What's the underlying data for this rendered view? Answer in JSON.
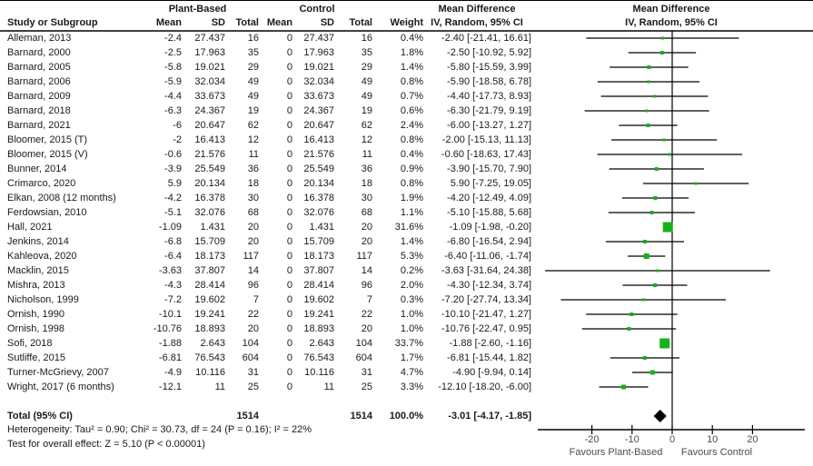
{
  "header": {
    "col_study": "Study or Subgroup",
    "group1": "Plant-Based",
    "group2": "Control",
    "col_mean1": "Mean",
    "col_sd1": "SD",
    "col_total1": "Total",
    "col_mean2": "Mean",
    "col_sd2": "SD",
    "col_total2": "Total",
    "col_weight": "Weight",
    "md_title": "Mean Difference",
    "md_subtitle": "IV, Random, 95% CI",
    "plot_title": "Mean Difference",
    "plot_subtitle": "IV, Random, 95% CI"
  },
  "studies": [
    {
      "name": "Alleman, 2013",
      "mean": "-2.4",
      "sd": "27.437",
      "total": "16",
      "c_mean": "0",
      "c_sd": "27.437",
      "c_total": "16",
      "weight": "0.4%",
      "ci": "-2.40 [-21.41, 16.61]",
      "est": -2.4,
      "lo": -21.41,
      "hi": 16.61,
      "w": 0.4
    },
    {
      "name": "Barnard, 2000",
      "mean": "-2.5",
      "sd": "17.963",
      "total": "35",
      "c_mean": "0",
      "c_sd": "17.963",
      "c_total": "35",
      "weight": "1.8%",
      "ci": "-2.50 [-10.92, 5.92]",
      "est": -2.5,
      "lo": -10.92,
      "hi": 5.92,
      "w": 1.8
    },
    {
      "name": "Barnard, 2005",
      "mean": "-5.8",
      "sd": "19.021",
      "total": "29",
      "c_mean": "0",
      "c_sd": "19.021",
      "c_total": "29",
      "weight": "1.4%",
      "ci": "-5.80 [-15.59, 3.99]",
      "est": -5.8,
      "lo": -15.59,
      "hi": 3.99,
      "w": 1.4
    },
    {
      "name": "Barnard, 2006",
      "mean": "-5.9",
      "sd": "32.034",
      "total": "49",
      "c_mean": "0",
      "c_sd": "32.034",
      "c_total": "49",
      "weight": "0.8%",
      "ci": "-5.90 [-18.58, 6.78]",
      "est": -5.9,
      "lo": -18.58,
      "hi": 6.78,
      "w": 0.8
    },
    {
      "name": "Barnard, 2009",
      "mean": "-4.4",
      "sd": "33.673",
      "total": "49",
      "c_mean": "0",
      "c_sd": "33.673",
      "c_total": "49",
      "weight": "0.7%",
      "ci": "-4.40 [-17.73, 8.93]",
      "est": -4.4,
      "lo": -17.73,
      "hi": 8.93,
      "w": 0.7
    },
    {
      "name": "Barnard, 2018",
      "mean": "-6.3",
      "sd": "24.367",
      "total": "19",
      "c_mean": "0",
      "c_sd": "24.367",
      "c_total": "19",
      "weight": "0.6%",
      "ci": "-6.30 [-21.79, 9.19]",
      "est": -6.3,
      "lo": -21.79,
      "hi": 9.19,
      "w": 0.6
    },
    {
      "name": "Barnard, 2021",
      "mean": "-6",
      "sd": "20.647",
      "total": "62",
      "c_mean": "0",
      "c_sd": "20.647",
      "c_total": "62",
      "weight": "2.4%",
      "ci": "-6.00 [-13.27, 1.27]",
      "est": -6.0,
      "lo": -13.27,
      "hi": 1.27,
      "w": 2.4
    },
    {
      "name": "Bloomer, 2015 (T)",
      "mean": "-2",
      "sd": "16.413",
      "total": "12",
      "c_mean": "0",
      "c_sd": "16.413",
      "c_total": "12",
      "weight": "0.8%",
      "ci": "-2.00 [-15.13, 11.13]",
      "est": -2.0,
      "lo": -15.13,
      "hi": 11.13,
      "w": 0.8
    },
    {
      "name": "Bloomer, 2015 (V)",
      "mean": "-0.6",
      "sd": "21.576",
      "total": "11",
      "c_mean": "0",
      "c_sd": "21.576",
      "c_total": "11",
      "weight": "0.4%",
      "ci": "-0.60 [-18.63, 17.43]",
      "est": -0.6,
      "lo": -18.63,
      "hi": 17.43,
      "w": 0.4
    },
    {
      "name": "Bunner, 2014",
      "mean": "-3.9",
      "sd": "25.549",
      "total": "36",
      "c_mean": "0",
      "c_sd": "25.549",
      "c_total": "36",
      "weight": "0.9%",
      "ci": "-3.90 [-15.70, 7.90]",
      "est": -3.9,
      "lo": -15.7,
      "hi": 7.9,
      "w": 0.9
    },
    {
      "name": "Crimarco, 2020",
      "mean": "5.9",
      "sd": "20.134",
      "total": "18",
      "c_mean": "0",
      "c_sd": "20.134",
      "c_total": "18",
      "weight": "0.8%",
      "ci": "5.90 [-7.25, 19.05]",
      "est": 5.9,
      "lo": -7.25,
      "hi": 19.05,
      "w": 0.8
    },
    {
      "name": "Elkan, 2008 (12 months)",
      "mean": "-4.2",
      "sd": "16.378",
      "total": "30",
      "c_mean": "0",
      "c_sd": "16.378",
      "c_total": "30",
      "weight": "1.9%",
      "ci": "-4.20 [-12.49, 4.09]",
      "est": -4.2,
      "lo": -12.49,
      "hi": 4.09,
      "w": 1.9
    },
    {
      "name": "Ferdowsian, 2010",
      "mean": "-5.1",
      "sd": "32.076",
      "total": "68",
      "c_mean": "0",
      "c_sd": "32.076",
      "c_total": "68",
      "weight": "1.1%",
      "ci": "-5.10 [-15.88, 5.68]",
      "est": -5.1,
      "lo": -15.88,
      "hi": 5.68,
      "w": 1.1
    },
    {
      "name": "Hall, 2021",
      "mean": "-1.09",
      "sd": "1.431",
      "total": "20",
      "c_mean": "0",
      "c_sd": "1.431",
      "c_total": "20",
      "weight": "31.6%",
      "ci": "-1.09 [-1.98, -0.20]",
      "est": -1.09,
      "lo": -1.98,
      "hi": -0.2,
      "w": 31.6
    },
    {
      "name": "Jenkins, 2014",
      "mean": "-6.8",
      "sd": "15.709",
      "total": "20",
      "c_mean": "0",
      "c_sd": "15.709",
      "c_total": "20",
      "weight": "1.4%",
      "ci": "-6.80 [-16.54, 2.94]",
      "est": -6.8,
      "lo": -16.54,
      "hi": 2.94,
      "w": 1.4
    },
    {
      "name": "Kahleova, 2020",
      "mean": "-6.4",
      "sd": "18.173",
      "total": "117",
      "c_mean": "0",
      "c_sd": "18.173",
      "c_total": "117",
      "weight": "5.3%",
      "ci": "-6.40 [-11.06, -1.74]",
      "est": -6.4,
      "lo": -11.06,
      "hi": -1.74,
      "w": 5.3
    },
    {
      "name": "Macklin, 2015",
      "mean": "-3.63",
      "sd": "37.807",
      "total": "14",
      "c_mean": "0",
      "c_sd": "37.807",
      "c_total": "14",
      "weight": "0.2%",
      "ci": "-3.63 [-31.64, 24.38]",
      "est": -3.63,
      "lo": -31.64,
      "hi": 24.38,
      "w": 0.2
    },
    {
      "name": "Mishra, 2013",
      "mean": "-4.3",
      "sd": "28.414",
      "total": "96",
      "c_mean": "0",
      "c_sd": "28.414",
      "c_total": "96",
      "weight": "2.0%",
      "ci": "-4.30 [-12.34, 3.74]",
      "est": -4.3,
      "lo": -12.34,
      "hi": 3.74,
      "w": 2.0
    },
    {
      "name": "Nicholson, 1999",
      "mean": "-7.2",
      "sd": "19.602",
      "total": "7",
      "c_mean": "0",
      "c_sd": "19.602",
      "c_total": "7",
      "weight": "0.3%",
      "ci": "-7.20 [-27.74, 13.34]",
      "est": -7.2,
      "lo": -27.74,
      "hi": 13.34,
      "w": 0.3
    },
    {
      "name": "Ornish, 1990",
      "mean": "-10.1",
      "sd": "19.241",
      "total": "22",
      "c_mean": "0",
      "c_sd": "19.241",
      "c_total": "22",
      "weight": "1.0%",
      "ci": "-10.10 [-21.47, 1.27]",
      "est": -10.1,
      "lo": -21.47,
      "hi": 1.27,
      "w": 1.0
    },
    {
      "name": "Ornish, 1998",
      "mean": "-10.76",
      "sd": "18.893",
      "total": "20",
      "c_mean": "0",
      "c_sd": "18.893",
      "c_total": "20",
      "weight": "1.0%",
      "ci": "-10.76 [-22.47, 0.95]",
      "est": -10.76,
      "lo": -22.47,
      "hi": 0.95,
      "w": 1.0
    },
    {
      "name": "Sofi, 2018",
      "mean": "-1.88",
      "sd": "2.643",
      "total": "104",
      "c_mean": "0",
      "c_sd": "2.643",
      "c_total": "104",
      "weight": "33.7%",
      "ci": "-1.88 [-2.60, -1.16]",
      "est": -1.88,
      "lo": -2.6,
      "hi": -1.16,
      "w": 33.7
    },
    {
      "name": "Sutliffe, 2015",
      "mean": "-6.81",
      "sd": "76.543",
      "total": "604",
      "c_mean": "0",
      "c_sd": "76.543",
      "c_total": "604",
      "weight": "1.7%",
      "ci": "-6.81 [-15.44, 1.82]",
      "est": -6.81,
      "lo": -15.44,
      "hi": 1.82,
      "w": 1.7
    },
    {
      "name": "Turner-McGrievy, 2007",
      "mean": "-4.9",
      "sd": "10.116",
      "total": "31",
      "c_mean": "0",
      "c_sd": "10.116",
      "c_total": "31",
      "weight": "4.7%",
      "ci": "-4.90 [-9.94, 0.14]",
      "est": -4.9,
      "lo": -9.94,
      "hi": 0.14,
      "w": 4.7
    },
    {
      "name": "Wright, 2017 (6 months)",
      "mean": "-12.1",
      "sd": "11",
      "total": "25",
      "c_mean": "0",
      "c_sd": "11",
      "c_total": "25",
      "weight": "3.3%",
      "ci": "-12.10 [-18.20, -6.00]",
      "est": -12.1,
      "lo": -18.2,
      "hi": -6.0,
      "w": 3.3
    }
  ],
  "total_row": {
    "label": "Total (95% CI)",
    "total": "1514",
    "c_total": "1514",
    "weight": "100.0%",
    "ci": "-3.01 [-4.17, -1.85]",
    "est": -3.01,
    "lo": -4.17,
    "hi": -1.85
  },
  "footer": {
    "heterogeneity": "Heterogeneity: Tau² = 0.90; Chi² = 30.73, df = 24 (P = 0.16); I² = 22%",
    "overall_effect": "Test for overall effect: Z = 5.10 (P < 0.00001)"
  },
  "plot": {
    "favours_left": "Favours Plant-Based",
    "favours_right": "Favours Control",
    "marker_color": "#17b217",
    "diamond_color": "#000000",
    "line_color": "#000000"
  },
  "chart_data": {
    "type": "scatter",
    "subtype": "forest-plot",
    "title": "Mean Difference",
    "effect_measure": "IV, Random, 95% CI",
    "x_ticks": [
      -20,
      -10,
      0,
      10,
      20
    ],
    "xlim": [
      -33.5,
      33
    ],
    "zero_line": 0,
    "xlabel_left": "Favours Plant-Based",
    "xlabel_right": "Favours Control",
    "study_names": [
      "Alleman, 2013",
      "Barnard, 2000",
      "Barnard, 2005",
      "Barnard, 2006",
      "Barnard, 2009",
      "Barnard, 2018",
      "Barnard, 2021",
      "Bloomer, 2015 (T)",
      "Bloomer, 2015 (V)",
      "Bunner, 2014",
      "Crimarco, 2020",
      "Elkan, 2008 (12 months)",
      "Ferdowsian, 2010",
      "Hall, 2021",
      "Jenkins, 2014",
      "Kahleova, 2020",
      "Macklin, 2015",
      "Mishra, 2013",
      "Nicholson, 1999",
      "Ornish, 1990",
      "Ornish, 1998",
      "Sofi, 2018",
      "Sutliffe, 2015",
      "Turner-McGrievy, 2007",
      "Wright, 2017 (6 months)"
    ],
    "estimates": [
      -2.4,
      -2.5,
      -5.8,
      -5.9,
      -4.4,
      -6.3,
      -6.0,
      -2.0,
      -0.6,
      -3.9,
      5.9,
      -4.2,
      -5.1,
      -1.09,
      -6.8,
      -6.4,
      -3.63,
      -4.3,
      -7.2,
      -10.1,
      -10.76,
      -1.88,
      -6.81,
      -4.9,
      -12.1
    ],
    "ci_lower": [
      -21.41,
      -10.92,
      -15.59,
      -18.58,
      -17.73,
      -21.79,
      -13.27,
      -15.13,
      -18.63,
      -15.7,
      -7.25,
      -12.49,
      -15.88,
      -1.98,
      -16.54,
      -11.06,
      -31.64,
      -12.34,
      -27.74,
      -21.47,
      -22.47,
      -2.6,
      -15.44,
      -9.94,
      -18.2
    ],
    "ci_upper": [
      16.61,
      5.92,
      3.99,
      6.78,
      8.93,
      9.19,
      1.27,
      11.13,
      17.43,
      7.9,
      19.05,
      4.09,
      5.68,
      -0.2,
      2.94,
      -1.74,
      24.38,
      3.74,
      13.34,
      1.27,
      0.95,
      -1.16,
      1.82,
      0.14,
      -6.0
    ],
    "weights_pct": [
      0.4,
      1.8,
      1.4,
      0.8,
      0.7,
      0.6,
      2.4,
      0.8,
      0.4,
      0.9,
      0.8,
      1.9,
      1.1,
      31.6,
      1.4,
      5.3,
      0.2,
      2.0,
      0.3,
      1.0,
      1.0,
      33.7,
      1.7,
      4.7,
      3.3
    ],
    "total": {
      "estimate": -3.01,
      "ci_lower": -4.17,
      "ci_upper": -1.85,
      "n_each_arm": 1514,
      "weight_pct": 100.0
    }
  }
}
